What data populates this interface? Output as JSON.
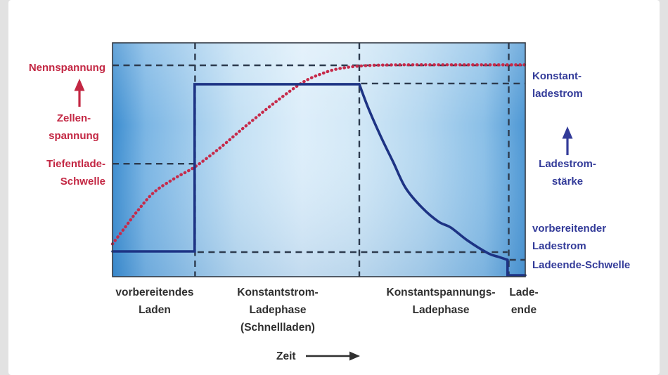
{
  "colors": {
    "voltage_label_red": "#c32743",
    "current_label_blue": "#333b99",
    "voltage_curve_red": "#c62a4a",
    "current_curve_navy": "#1d3384",
    "dashed_line": "#2d3b4e",
    "axis_text": "#2f2f2f",
    "plot_border": "#333a44"
  },
  "chart_data": {
    "type": "line",
    "title": "",
    "xlabel": "Zeit",
    "ylabel_left": "Zellenspannung",
    "ylabel_right": "Ladestromstärke",
    "grid": "dashed phase boundaries and threshold levels, no numeric ticks",
    "legend_position": "labels beside curves (left = voltage in red, right = current in blue)",
    "x_range_normalized": [
      0,
      1
    ],
    "y_range_normalized": [
      0,
      1
    ],
    "phase_boundaries_x": [
      0.2,
      0.598,
      0.96
    ],
    "x_phases": [
      {
        "label": "vorbereitendes Laden",
        "x_start": 0.0,
        "x_end": 0.2
      },
      {
        "label": "Konstantstrom-Ladephase (Schnellladen)",
        "x_start": 0.2,
        "x_end": 0.598
      },
      {
        "label": "Konstantspannungs-Ladephase",
        "x_start": 0.598,
        "x_end": 0.96
      },
      {
        "label": "Lade-ende",
        "x_start": 0.96,
        "x_end": 1.0
      }
    ],
    "reference_levels": {
      "voltage": [
        {
          "name": "Nennspannung",
          "y": 0.904,
          "x_start": 0.0,
          "x_end": 1.0
        },
        {
          "name": "Tiefentlade-Schwelle",
          "y": 0.483,
          "x_start": 0.0,
          "x_end": 0.207
        }
      ],
      "current": [
        {
          "name": "Konstantladestrom",
          "y": 0.826,
          "x_start": 0.602,
          "x_end": 1.0
        },
        {
          "name": "vorbereitender Ladestrom",
          "y": 0.105,
          "x_start": 0.206,
          "x_end": 0.957
        },
        {
          "name": "Ladeende-Schwelle",
          "y": 0.072,
          "x_start": 0.962,
          "x_end": 1.0
        }
      ]
    },
    "series": [
      {
        "name": "Zellenspannung",
        "color": "#c62a4a",
        "style": "dotted",
        "width": 4.3,
        "segments": [
          {
            "smooth": true,
            "points": [
              [
                0.0,
                0.14
              ],
              [
                0.03,
                0.21
              ],
              [
                0.06,
                0.28
              ],
              [
                0.1,
                0.36
              ],
              [
                0.15,
                0.42
              ],
              [
                0.2,
                0.47
              ],
              [
                0.26,
                0.55
              ],
              [
                0.32,
                0.64
              ],
              [
                0.39,
                0.74
              ],
              [
                0.46,
                0.83
              ],
              [
                0.51,
                0.87
              ],
              [
                0.55,
                0.89
              ],
              [
                0.61,
                0.902
              ],
              [
                0.7,
                0.906
              ],
              [
                0.85,
                0.906
              ],
              [
                1.0,
                0.906
              ]
            ]
          }
        ]
      },
      {
        "name": "Ladestromstärke",
        "color": "#1d3384",
        "style": "solid",
        "width": 3.6,
        "segments": [
          {
            "smooth": false,
            "points": [
              [
                0.0,
                0.108
              ],
              [
                0.199,
                0.108
              ],
              [
                0.199,
                0.823
              ],
              [
                0.598,
                0.823
              ]
            ]
          },
          {
            "smooth": true,
            "points": [
              [
                0.598,
                0.823
              ],
              [
                0.62,
                0.72
              ],
              [
                0.65,
                0.6
              ],
              [
                0.68,
                0.49
              ],
              [
                0.71,
                0.38
              ],
              [
                0.75,
                0.295
              ],
              [
                0.79,
                0.235
              ],
              [
                0.82,
                0.21
              ],
              [
                0.86,
                0.155
              ],
              [
                0.91,
                0.1
              ],
              [
                0.935,
                0.085
              ],
              [
                0.957,
                0.072
              ]
            ]
          },
          {
            "smooth": false,
            "points": [
              [
                0.957,
                0.072
              ],
              [
                0.957,
                0.006
              ],
              [
                1.0,
                0.006
              ]
            ]
          }
        ]
      }
    ]
  },
  "labels": {
    "left": {
      "l1": "Nennspannung",
      "l2a": "Zellen-",
      "l2b": "spannung",
      "l3a": "Tiefentlade-",
      "l3b": "Schwelle"
    },
    "right": {
      "r1a": "Konstant-",
      "r1b": "ladestrom",
      "r2a": "Ladestrom-",
      "r2b": "stärke",
      "r3a": "vorbereitender",
      "r3b": "Ladestrom",
      "r4": "Ladeende-Schwelle"
    },
    "bottom": {
      "p1a": "vorbereitendes",
      "p1b": "Laden",
      "p2a": "Konstantstrom-",
      "p2b": "Ladephase",
      "p2c": "(Schnellladen)",
      "p3a": "Konstantspannungs-",
      "p3b": "Ladephase",
      "p4a": "Lade-",
      "p4b": "ende",
      "time": "Zeit"
    }
  }
}
